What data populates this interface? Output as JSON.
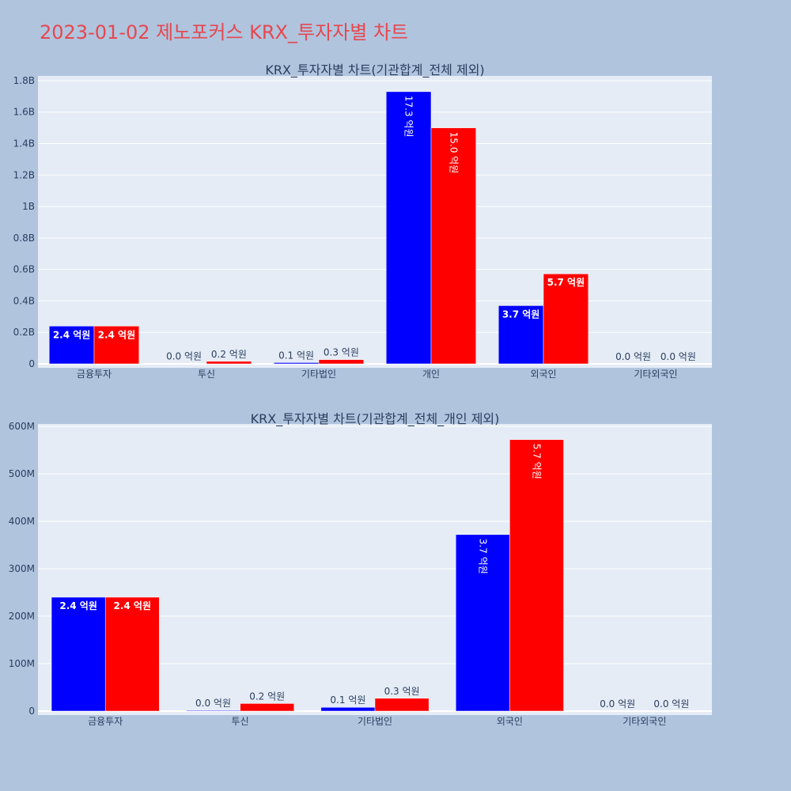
{
  "title": "2023-01-02 제노포커스 KRX_투자자별 차트",
  "colors": {
    "background": "#b0c4de",
    "plot_bg": "#e5ecf6",
    "buy": "#0000ff",
    "sell": "#ff0000",
    "title": "#e6484f"
  },
  "chart_data": [
    {
      "type": "bar",
      "title": "KRX_투자자별 차트(기관합계_전체 제외)",
      "categories": [
        "금융투자",
        "투신",
        "기타법인",
        "개인",
        "외국인",
        "기타외국인"
      ],
      "series": [
        {
          "values": [
            240000000,
            1500000,
            8000000,
            1730000000,
            370000000,
            0
          ],
          "labels": [
            "2.4 억원",
            "0.0 억원",
            "0.1 억원",
            "17.3 억원",
            "3.7 억원",
            "0.0 억원"
          ]
        },
        {
          "values": [
            240000000,
            16000000,
            27000000,
            1500000000,
            572000000,
            0
          ],
          "labels": [
            "2.4 억원",
            "0.2 억원",
            "0.3 억원",
            "15.0 억원",
            "5.7 억원",
            "0.0 억원"
          ]
        }
      ],
      "ylim": [
        0,
        1830000000
      ],
      "yticks": [
        {
          "value": 0,
          "label": "0"
        },
        {
          "value": 200000000,
          "label": "0.2B"
        },
        {
          "value": 400000000,
          "label": "0.4B"
        },
        {
          "value": 600000000,
          "label": "0.6B"
        },
        {
          "value": 800000000,
          "label": "0.8B"
        },
        {
          "value": 1000000000,
          "label": "1B"
        },
        {
          "value": 1200000000,
          "label": "1.2B"
        },
        {
          "value": 1400000000,
          "label": "1.4B"
        },
        {
          "value": 1600000000,
          "label": "1.6B"
        },
        {
          "value": 1800000000,
          "label": "1.8B"
        }
      ],
      "grid": true
    },
    {
      "type": "bar",
      "title": "KRX_투자자별 차트(기관합계_전체_개인 제외)",
      "categories": [
        "금융투자",
        "투신",
        "기타법인",
        "외국인",
        "기타외국인"
      ],
      "series": [
        {
          "values": [
            240000000,
            1500000,
            8000000,
            372000000,
            0
          ],
          "labels": [
            "2.4 억원",
            "0.0 억원",
            "0.1 억원",
            "3.7 억원",
            "0.0 억원"
          ]
        },
        {
          "values": [
            240000000,
            16000000,
            27000000,
            572000000,
            0
          ],
          "labels": [
            "2.4 억원",
            "0.2 억원",
            "0.3 억원",
            "5.7 억원",
            "0.0 억원"
          ]
        }
      ],
      "ylim": [
        0,
        605000000
      ],
      "yticks": [
        {
          "value": 0,
          "label": "0"
        },
        {
          "value": 100000000,
          "label": "100M"
        },
        {
          "value": 200000000,
          "label": "200M"
        },
        {
          "value": 300000000,
          "label": "300M"
        },
        {
          "value": 400000000,
          "label": "400M"
        },
        {
          "value": 500000000,
          "label": "500M"
        },
        {
          "value": 600000000,
          "label": "600M"
        }
      ],
      "grid": true
    }
  ]
}
